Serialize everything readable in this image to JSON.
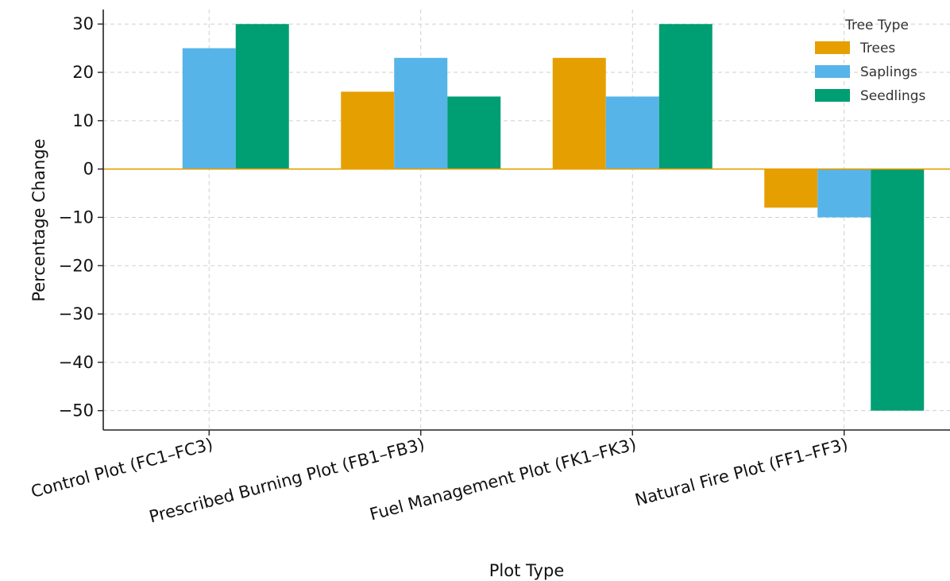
{
  "chart_data": {
    "type": "bar",
    "title": "",
    "xlabel": "Plot Type",
    "ylabel": "Percentage Change",
    "categories": [
      "Control Plot (FC1–FC3)",
      "Prescribed Burning Plot (FB1–FB3)",
      "Fuel Management Plot (FK1–FK3)",
      "Natural Fire Plot (FF1–FF3)"
    ],
    "series": [
      {
        "name": "Trees",
        "color": "#E69F00",
        "values": [
          0,
          16,
          23,
          -8
        ]
      },
      {
        "name": "Saplings",
        "color": "#56B4E9",
        "values": [
          25,
          23,
          15,
          -10
        ]
      },
      {
        "name": "Seedlings",
        "color": "#009E73",
        "values": [
          30,
          15,
          30,
          -50
        ]
      }
    ],
    "ylim": [
      -54,
      33
    ],
    "yticks": [
      30,
      20,
      10,
      0,
      -10,
      -20,
      -30,
      -40,
      -50
    ],
    "ytick_labels": [
      "30",
      "20",
      "10",
      "0",
      "−10",
      "−20",
      "−30",
      "−40",
      "−50"
    ],
    "zero_line_color": "#E69F00",
    "grid": true,
    "legend": {
      "title": "Tree Type",
      "position": "top-right"
    }
  }
}
